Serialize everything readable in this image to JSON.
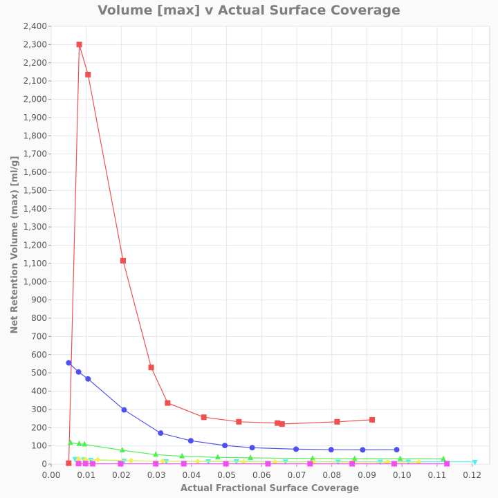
{
  "chart_data": {
    "type": "line",
    "title": "Volume [max] v Actual Surface Coverage",
    "xlabel": "Actual Fractional Surface Coverage",
    "ylabel": "Net Retention Volume (max) [ml/g]",
    "xlim": [
      0,
      0.125
    ],
    "ylim": [
      0,
      2400
    ],
    "x_ticks": [
      0,
      0.01,
      0.02,
      0.03,
      0.04,
      0.05,
      0.06,
      0.07,
      0.08,
      0.09,
      0.1,
      0.11,
      0.12
    ],
    "x_tick_labels": [
      "0.00",
      "0.01",
      "0.02",
      "0.03",
      "0.04",
      "0.05",
      "0.06",
      "0.07",
      "0.08",
      "0.09",
      "0.10",
      "0.11",
      "0.12"
    ],
    "y_ticks": [
      0,
      100,
      200,
      300,
      400,
      500,
      600,
      700,
      800,
      900,
      1000,
      1100,
      1200,
      1300,
      1400,
      1500,
      1600,
      1700,
      1800,
      1900,
      2000,
      2100,
      2200,
      2300,
      2400
    ],
    "y_tick_labels": [
      "0",
      "100",
      "200",
      "300",
      "400",
      "500",
      "600",
      "700",
      "800",
      "900",
      "1,000",
      "1,100",
      "1,200",
      "1,300",
      "1,400",
      "1,500",
      "1,600",
      "1,700",
      "1,800",
      "1,900",
      "2,000",
      "2,100",
      "2,200",
      "2,300",
      "2,400"
    ],
    "grid": true,
    "legend": "none",
    "series": [
      {
        "color": "#f05050",
        "marker": "square",
        "x": [
          0.005,
          0.008,
          0.0105,
          0.0205,
          0.0285,
          0.0332,
          0.0435,
          0.0535,
          0.0645,
          0.0658,
          0.0815,
          0.0915
        ],
        "y": [
          5,
          2300,
          2135,
          1115,
          530,
          335,
          257,
          232,
          225,
          220,
          232,
          243
        ]
      },
      {
        "color": "#5050f0",
        "marker": "circle",
        "x": [
          0.005,
          0.0078,
          0.0105,
          0.0208,
          0.0312,
          0.0398,
          0.0495,
          0.0573,
          0.0698,
          0.0798,
          0.0888,
          0.0985
        ],
        "y": [
          555,
          505,
          467,
          297,
          170,
          128,
          102,
          90,
          82,
          79,
          78,
          79
        ]
      },
      {
        "color": "#50f050",
        "marker": "triangle-up",
        "x": [
          0.0055,
          0.008,
          0.0095,
          0.0203,
          0.0298,
          0.0373,
          0.0475,
          0.0568,
          0.0745,
          0.0865,
          0.0995,
          0.1118
        ],
        "y": [
          117,
          111,
          108,
          76,
          52,
          43,
          37,
          34,
          31,
          29,
          29,
          28
        ]
      },
      {
        "color": "#50f0f0",
        "marker": "triangle-down",
        "x": [
          0.0068,
          0.0093,
          0.0113,
          0.0208,
          0.0328,
          0.0448,
          0.0528,
          0.0668,
          0.0818,
          0.0938,
          0.1018,
          0.1208
        ],
        "y": [
          28,
          26,
          23,
          18,
          16,
          15,
          15,
          14,
          13,
          13,
          13,
          12
        ]
      },
      {
        "color": "#f0f050",
        "marker": "diamond",
        "x": [
          0.0078,
          0.0098,
          0.0133,
          0.0228,
          0.0318,
          0.0418,
          0.0548,
          0.0638,
          0.0748,
          0.0858,
          0.0958,
          0.1048
        ],
        "y": [
          29,
          25,
          24,
          19,
          16,
          14,
          13,
          12,
          12,
          11,
          11,
          11
        ]
      },
      {
        "color": "#f050f0",
        "marker": "square",
        "x": [
          0.0078,
          0.0098,
          0.0118,
          0.0198,
          0.0298,
          0.0378,
          0.0498,
          0.0618,
          0.0738,
          0.0858,
          0.0978,
          0.1128
        ],
        "y": [
          3,
          3,
          2,
          2,
          2,
          2,
          2,
          2,
          2,
          2,
          2,
          2
        ]
      }
    ]
  }
}
